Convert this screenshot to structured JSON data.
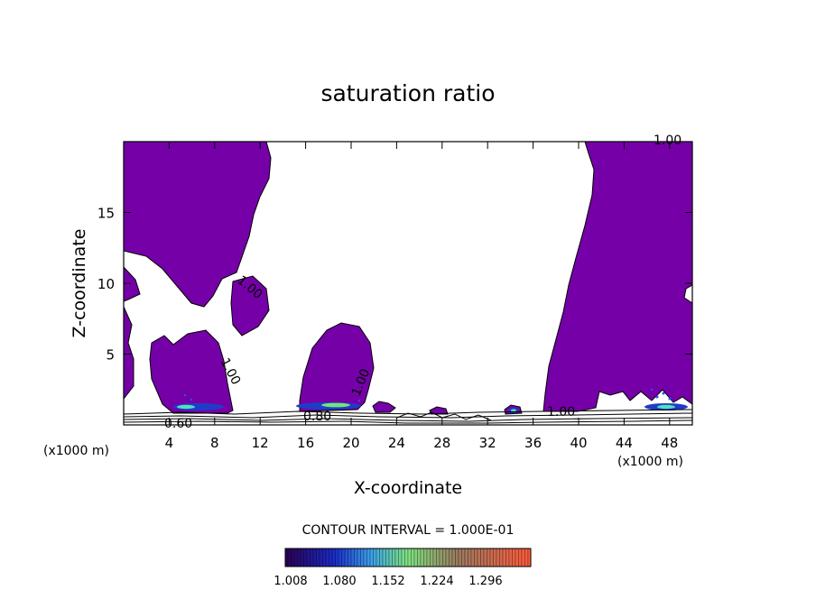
{
  "chart_data": {
    "type": "contour",
    "title": "saturation ratio",
    "xlabel": "X-coordinate",
    "ylabel": "Z-coordinate",
    "x_unit_left": "(x1000 m)",
    "x_unit_right": "(x1000 m)",
    "xlim": [
      0,
      50
    ],
    "ylim": [
      0,
      20
    ],
    "x_ticks": [
      4,
      8,
      12,
      16,
      20,
      24,
      28,
      32,
      36,
      40,
      44,
      48
    ],
    "y_ticks": [
      5,
      10,
      15
    ],
    "contour_labels": [
      {
        "text": "1.00",
        "x": 48.7,
        "z": 19.5
      },
      {
        "text": "1.00",
        "x": 11.5,
        "z": 9.8
      },
      {
        "text": "1.00",
        "x": 9.5,
        "z": 3.5
      },
      {
        "text": "1.00",
        "x": 21.7,
        "z": 3.0
      },
      {
        "text": "1.00",
        "x": 39.5,
        "z": 1.0
      },
      {
        "text": "0.80",
        "x": 17.5,
        "z": 0.6
      },
      {
        "text": "0.60",
        "x": 5.3,
        "z": 0.1
      }
    ],
    "contour_interval_label": "CONTOUR INTERVAL = 1.000E-01",
    "colorbar_ticks": [
      "1.008",
      "1.080",
      "1.152",
      "1.224",
      "1.296"
    ],
    "colors": {
      "fill": "#7500a8",
      "colorbar_start": "#2b0052",
      "colorbar_mid": "#7fe37f",
      "colorbar_end": "#ff5a3c"
    }
  }
}
